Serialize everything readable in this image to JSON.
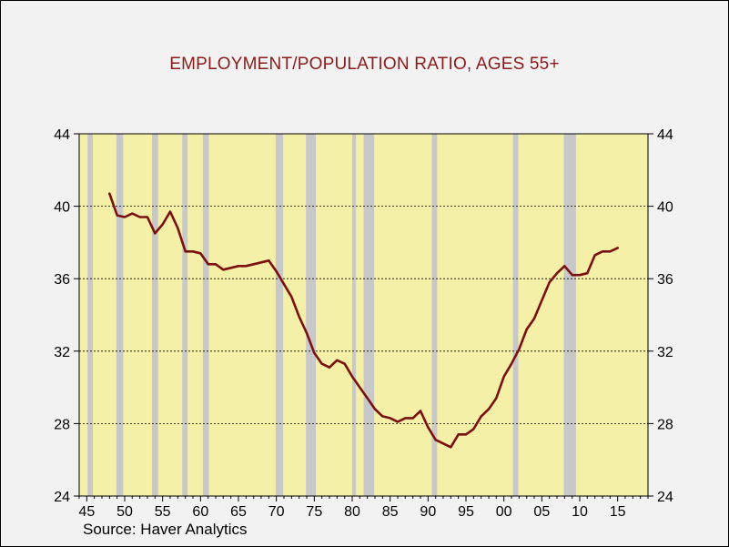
{
  "chart_data": {
    "type": "line",
    "title": "EMPLOYMENT/POPULATION RATIO, AGES 55+",
    "source": "Source: Haver Analytics",
    "xlabel": "",
    "ylabel": "",
    "xlim": [
      1944,
      2019
    ],
    "ylim": [
      24,
      44
    ],
    "y_ticks": [
      24,
      28,
      32,
      36,
      40,
      44
    ],
    "x_ticks": [
      {
        "year": 1945,
        "label": "45"
      },
      {
        "year": 1950,
        "label": "50"
      },
      {
        "year": 1955,
        "label": "55"
      },
      {
        "year": 1960,
        "label": "60"
      },
      {
        "year": 1965,
        "label": "65"
      },
      {
        "year": 1970,
        "label": "70"
      },
      {
        "year": 1975,
        "label": "75"
      },
      {
        "year": 1980,
        "label": "80"
      },
      {
        "year": 1985,
        "label": "85"
      },
      {
        "year": 1990,
        "label": "90"
      },
      {
        "year": 1995,
        "label": "95"
      },
      {
        "year": 2000,
        "label": "00"
      },
      {
        "year": 2005,
        "label": "05"
      },
      {
        "year": 2010,
        "label": "10"
      },
      {
        "year": 2015,
        "label": "15"
      }
    ],
    "grid": "horizontal dashed",
    "plot_background": "#f4f0a8",
    "line_color": "#7a1010",
    "recession_color": "#c8c8c8",
    "recessions": [
      [
        1945.1,
        1945.8
      ],
      [
        1948.9,
        1949.8
      ],
      [
        1953.6,
        1954.4
      ],
      [
        1957.6,
        1958.3
      ],
      [
        1960.3,
        1961.1
      ],
      [
        1969.9,
        1970.9
      ],
      [
        1973.9,
        1975.2
      ],
      [
        1980.0,
        1980.5
      ],
      [
        1981.5,
        1982.9
      ],
      [
        1990.5,
        1991.2
      ],
      [
        2001.2,
        2001.9
      ],
      [
        2007.9,
        2009.5
      ]
    ],
    "series": [
      {
        "x": [
          1948,
          1949,
          1950,
          1951,
          1952,
          1953,
          1954,
          1955,
          1956,
          1957,
          1958,
          1959,
          1960,
          1961,
          1962,
          1963,
          1964,
          1965,
          1966,
          1967,
          1968,
          1969,
          1970,
          1971,
          1972,
          1973,
          1974,
          1975,
          1976,
          1977,
          1978,
          1979,
          1980,
          1981,
          1982,
          1983,
          1984,
          1985,
          1986,
          1987,
          1988,
          1989,
          1990,
          1991,
          1992,
          1993,
          1994,
          1995,
          1996,
          1997,
          1998,
          1999,
          2000,
          2001,
          2002,
          2003,
          2004,
          2005,
          2006,
          2007,
          2008,
          2009,
          2010,
          2011,
          2012,
          2013,
          2014,
          2015
        ],
        "values": [
          40.7,
          39.5,
          39.4,
          39.6,
          39.4,
          39.4,
          38.5,
          39.0,
          39.7,
          38.8,
          37.5,
          37.5,
          37.4,
          36.8,
          36.8,
          36.5,
          36.6,
          36.7,
          36.7,
          36.8,
          36.9,
          37.0,
          36.4,
          35.7,
          35.0,
          33.9,
          33.0,
          31.9,
          31.3,
          31.1,
          31.5,
          31.3,
          30.6,
          30.0,
          29.4,
          28.8,
          28.4,
          28.3,
          28.1,
          28.3,
          28.3,
          28.7,
          27.8,
          27.1,
          26.9,
          26.7,
          27.4,
          27.4,
          27.7,
          28.4,
          28.8,
          29.4,
          30.6,
          31.3,
          32.1,
          33.2,
          33.8,
          34.8,
          35.8,
          36.3,
          36.7,
          36.2,
          36.2,
          36.3,
          37.3,
          37.5,
          37.5,
          37.7
        ]
      }
    ]
  }
}
